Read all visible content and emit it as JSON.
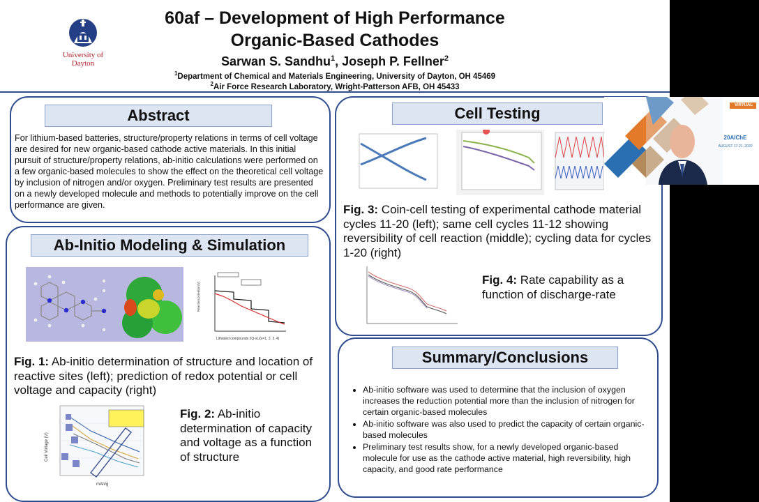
{
  "poster": {
    "title_line1": "60af – Development of High Performance",
    "title_line2": "Organic-Based Cathodes",
    "author1": "Sarwan S. Sandhu",
    "author1_sup": "1",
    "author_sep": ", ",
    "author2": "Joseph P. Fellner",
    "author2_sup": "2",
    "affil1_sup": "1",
    "affil1": "Department of Chemical and Materials Engineering, University of Dayton, OH 45469",
    "affil2_sup": "2",
    "affil2": "Air Force Research Laboratory, Wright-Patterson AFB, OH 45433",
    "logo_line1": "University of",
    "logo_line2": "Dayton"
  },
  "abstract": {
    "heading": "Abstract",
    "text": "For lithium-based batteries, structure/property relations in terms of cell voltage are desired for new organic-based cathode active materials. In this initial pursuit of structure/property relations, ab-initio calculations were performed on a few organic-based molecules to show the effect on the theoretical cell voltage by inclusion of nitrogen and/or oxygen. Preliminary test results are presented on a newly developed molecule and methods to potentially improve on the cell performance are given."
  },
  "modeling": {
    "heading": "Ab-Initio Modeling & Simulation",
    "fig1_label": "Fig. 1:",
    "fig1_text": " Ab-initio determination of structure and location of reactive sites (left); prediction of redox potential or cell voltage and capacity (right)",
    "fig2_label": "Fig. 2:",
    "fig2_text": " Ab-initio determination of capacity and voltage as a function of structure",
    "fig1_chart_xlabel": "Lithiated compounds 2Q-xLi(x=1, 2, 3, 4)",
    "fig2_chart_xlabel": "mAh/g",
    "fig2_chart_ylabel": "Cell Voltage (V)"
  },
  "cell_testing": {
    "heading": "Cell Testing",
    "fig3_label": "Fig. 3:",
    "fig3_text": " Coin-cell testing of experimental cathode material cycles 11-20 (left); same cell cycles 11-12 showing reversibility of cell reaction (middle); cycling data for cycles 1-20 (right)",
    "fig4_label": "Fig. 4:",
    "fig4_text": " Rate capability as a function of discharge-rate"
  },
  "summary": {
    "heading": "Summary/Conclusions",
    "bullets": [
      "Ab-initio software was used to determine that the inclusion of oxygen increases the reduction potential more than the inclusion of nitrogen for certain organic-based molecules",
      "Ab-initio software was also used to predict the capacity of certain organic-based molecules",
      "Preliminary test results show, for a newly developed organic-based molecule for use as the cathode active material, high reversibility, high capacity, and good rate performance"
    ]
  },
  "video_overlay": {
    "badge": "VIRTUAL",
    "event": "20AIChE",
    "dates": "AUGUST 17-21, 2020"
  },
  "colors": {
    "frame_blue": "#2e4b8e",
    "heading_fill": "#dde4f2",
    "logo_red": "#b3202b"
  }
}
